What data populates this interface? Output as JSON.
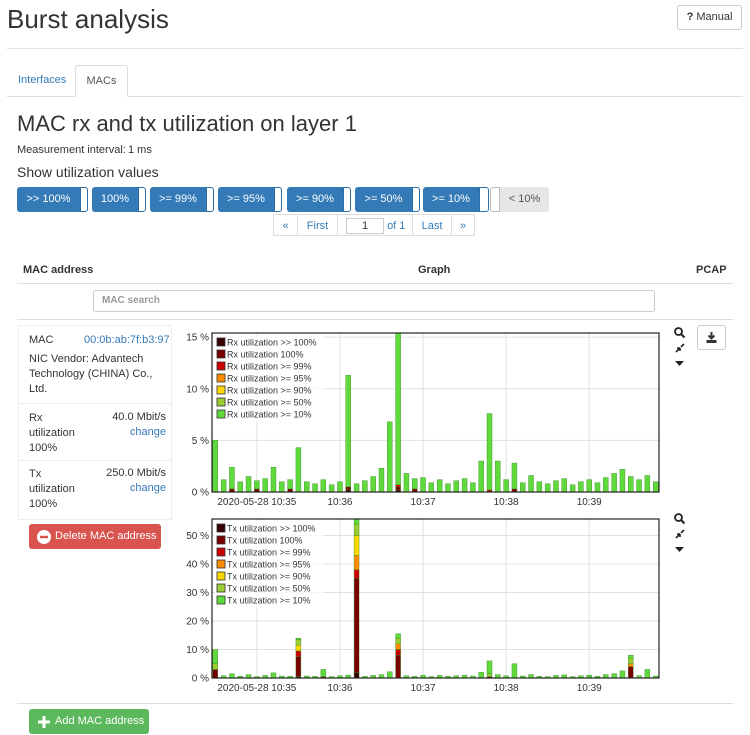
{
  "header": {
    "title": "Burst analysis",
    "manual_icon": "?",
    "manual": "Manual"
  },
  "tabs": [
    "Interfaces",
    "MACs"
  ],
  "section_title": "MAC rx and tx utilization on layer 1",
  "measurement": {
    "label": "Measurement interval:",
    "value": "1 ms"
  },
  "filters": {
    "title": "Show utilization values",
    "buttons": [
      ">> 100%",
      "100%",
      ">= 99%",
      ">= 95%",
      ">= 90%",
      ">= 50%",
      ">= 10%",
      "< 10%"
    ]
  },
  "pagination": [
    "«",
    "First",
    "1",
    "of 1",
    "Last",
    "»"
  ],
  "table": {
    "headers": [
      "MAC address",
      "Graph",
      "PCAP"
    ],
    "search_placeholder": "MAC search"
  },
  "mac": {
    "label": "MAC",
    "address": "00:0b:ab:7f:b3:97",
    "vendor": "NIC Vendor: Advantech Technology (CHINA) Co., Ltd.",
    "rx_label": "Rx utilization 100%",
    "rx_value": "40.0 Mbit/s",
    "rx_change": "change",
    "tx_label": "Tx utilization 100%",
    "tx_value": "250.0 Mbit/s",
    "tx_change": "change",
    "delete": "Delete MAC address"
  },
  "add_button": "Add MAC address",
  "chart_data": [
    {
      "type": "bar",
      "stacked": true,
      "grid": true,
      "legend": "upper left",
      "x": [
        -0.5,
        -0.4,
        -0.3,
        -0.2,
        -0.1,
        0,
        0.1,
        0.2,
        0.3,
        0.4,
        0.5,
        0.6,
        0.7,
        0.8,
        0.9,
        1,
        1.1,
        1.2,
        1.3,
        1.4,
        1.5,
        1.6,
        1.7,
        1.8,
        1.9,
        2,
        2.1,
        2.2,
        2.3,
        2.4,
        2.5,
        2.6,
        2.7,
        2.8,
        2.9,
        3,
        3.1,
        3.2,
        3.3,
        3.4,
        3.5,
        3.6,
        3.7,
        3.8,
        3.9,
        4,
        4.1,
        4.2,
        4.3,
        4.4,
        4.5,
        4.6,
        4.7,
        4.8
      ],
      "xlim": [
        -0.54,
        4.84
      ],
      "xticks": [
        {
          "value": 0,
          "label": "2020-05-28 10:35"
        },
        {
          "value": 1,
          "label": "10:36"
        },
        {
          "value": 2,
          "label": "10:37"
        },
        {
          "value": 3,
          "label": "10:38"
        },
        {
          "value": 4,
          "label": "10:39"
        }
      ],
      "ylim": [
        0,
        15.4
      ],
      "yticks": [
        {
          "value": 0,
          "label": "0 %"
        },
        {
          "value": 5,
          "label": "5 %"
        },
        {
          "value": 10,
          "label": "10 %"
        },
        {
          "value": 15,
          "label": "15 %"
        }
      ],
      "series": [
        {
          "name": "Rx utilization >> 100%",
          "color": "#3a0000",
          "values": [
            0,
            0,
            0,
            0,
            0,
            0,
            0,
            0,
            0,
            0,
            0,
            0,
            0,
            0,
            0,
            0,
            0.2,
            0,
            0,
            0,
            0,
            0,
            0.2,
            0,
            0,
            0,
            0,
            0,
            0,
            0,
            0,
            0,
            0,
            0,
            0,
            0,
            0,
            0,
            0,
            0,
            0,
            0,
            0,
            0,
            0,
            0,
            0,
            0,
            0,
            0,
            0,
            0,
            0,
            0
          ]
        },
        {
          "name": "Rx utilization 100%",
          "color": "#7a0000",
          "values": [
            0,
            0,
            0.3,
            0,
            0,
            0.3,
            0,
            0,
            0,
            0.3,
            0,
            0,
            0,
            0,
            0,
            0,
            0.3,
            0,
            0,
            0,
            0,
            0,
            0.3,
            0,
            0.3,
            0,
            0,
            0,
            0,
            0,
            0,
            0,
            0,
            0,
            0,
            0,
            0.3,
            0,
            0,
            0,
            0,
            0,
            0,
            0,
            0,
            0,
            0,
            0,
            0,
            0,
            0,
            0,
            0,
            0
          ]
        },
        {
          "name": "Rx utilization >= 99%",
          "color": "#cc0000",
          "values": [
            0,
            0,
            0,
            0,
            0,
            0,
            0,
            0,
            0,
            0,
            0,
            0,
            0,
            0,
            0,
            0,
            0,
            0,
            0,
            0,
            0,
            0,
            0.2,
            0,
            0,
            0,
            0,
            0,
            0,
            0,
            0,
            0,
            0,
            0.2,
            0,
            0,
            0,
            0,
            0,
            0,
            0,
            0,
            0,
            0,
            0,
            0,
            0,
            0,
            0,
            0,
            0,
            0,
            0,
            0
          ]
        },
        {
          "name": "Rx utilization >= 95%",
          "color": "#ff8c00",
          "values": [
            0,
            0,
            0,
            0,
            0,
            0,
            0,
            0,
            0,
            0,
            0,
            0,
            0,
            0,
            0,
            0,
            0,
            0,
            0,
            0,
            0,
            0,
            0,
            0,
            0,
            0,
            0,
            0,
            0,
            0,
            0,
            0,
            0,
            0,
            0,
            0,
            0,
            0,
            0,
            0,
            0,
            0,
            0,
            0,
            0,
            0,
            0,
            0,
            0,
            0,
            0,
            0,
            0,
            0
          ]
        },
        {
          "name": "Rx utilization >= 90%",
          "color": "#ffd700",
          "values": [
            0,
            0,
            0,
            0,
            0,
            0,
            0,
            0,
            0,
            0,
            0,
            0,
            0,
            0,
            0,
            0,
            0,
            0,
            0,
            0,
            0,
            0,
            0,
            0,
            0,
            0,
            0,
            0,
            0,
            0,
            0,
            0,
            0,
            0,
            0,
            0,
            0,
            0,
            0,
            0,
            0,
            0,
            0,
            0,
            0,
            0,
            0,
            0,
            0,
            0,
            0,
            0,
            0,
            0
          ]
        },
        {
          "name": "Rx utilization >= 50%",
          "color": "#9acd32",
          "values": [
            0,
            0,
            0,
            0,
            0,
            0,
            0,
            0,
            0,
            0,
            0,
            0,
            0,
            0,
            0,
            0,
            0,
            0,
            0,
            0,
            0,
            0,
            0,
            0,
            0,
            0,
            0,
            0,
            0,
            0,
            0,
            0,
            0,
            0,
            0,
            0,
            0,
            0,
            0,
            0,
            0,
            0,
            0,
            0,
            0,
            0,
            0,
            0,
            0,
            0,
            0,
            0,
            0,
            0
          ]
        },
        {
          "name": "Rx utilization >= 10%",
          "color": "#5fd93c",
          "values": [
            5,
            1.2,
            2.1,
            1,
            1.5,
            0.8,
            1.3,
            2.4,
            1,
            0.9,
            4.3,
            1,
            0.8,
            1.2,
            0.7,
            1,
            10.8,
            0.8,
            1.1,
            1.5,
            2.3,
            6.8,
            14.7,
            1.8,
            1,
            1.4,
            0.9,
            1.2,
            0.8,
            1.1,
            1.3,
            0.9,
            3,
            7.4,
            3,
            1.2,
            2.5,
            0.9,
            1.6,
            1,
            0.8,
            1.1,
            1.3,
            0.7,
            1,
            1.2,
            0.9,
            1.4,
            1.8,
            2.2,
            1.5,
            1.2,
            1.6,
            1
          ]
        }
      ]
    },
    {
      "type": "bar",
      "stacked": true,
      "grid": true,
      "legend": "upper left",
      "x": [
        -0.5,
        -0.4,
        -0.3,
        -0.2,
        -0.1,
        0,
        0.1,
        0.2,
        0.3,
        0.4,
        0.5,
        0.6,
        0.7,
        0.8,
        0.9,
        1,
        1.1,
        1.2,
        1.3,
        1.4,
        1.5,
        1.6,
        1.7,
        1.8,
        1.9,
        2,
        2.1,
        2.2,
        2.3,
        2.4,
        2.5,
        2.6,
        2.7,
        2.8,
        2.9,
        3,
        3.1,
        3.2,
        3.3,
        3.4,
        3.5,
        3.6,
        3.7,
        3.8,
        3.9,
        4,
        4.1,
        4.2,
        4.3,
        4.4,
        4.5,
        4.6,
        4.7,
        4.8
      ],
      "xlim": [
        -0.54,
        4.84
      ],
      "xticks": [
        {
          "value": 0,
          "label": "2020-05-28 10:35"
        },
        {
          "value": 1,
          "label": "10:36"
        },
        {
          "value": 2,
          "label": "10:37"
        },
        {
          "value": 3,
          "label": "10:38"
        },
        {
          "value": 4,
          "label": "10:39"
        }
      ],
      "ylim": [
        0,
        55.8
      ],
      "yticks": [
        {
          "value": 0,
          "label": "0 %"
        },
        {
          "value": 10,
          "label": "10 %"
        },
        {
          "value": 20,
          "label": "20 %"
        },
        {
          "value": 30,
          "label": "30 %"
        },
        {
          "value": 40,
          "label": "40 %"
        },
        {
          "value": 50,
          "label": "50 %"
        }
      ],
      "series": [
        {
          "name": "Tx utilization >> 100%",
          "color": "#3a0000",
          "values": [
            0,
            0,
            0,
            0,
            0,
            0,
            0,
            0,
            0,
            0,
            0.5,
            0,
            0,
            0,
            0,
            0,
            0,
            2,
            0,
            0,
            0,
            0,
            0,
            0,
            0,
            0,
            0,
            0,
            0,
            0,
            0,
            0,
            0,
            0,
            0,
            0,
            0,
            0,
            0,
            0,
            0,
            0,
            0,
            0,
            0,
            0,
            0,
            0,
            0,
            0,
            0,
            0,
            0,
            0
          ]
        },
        {
          "name": "Tx utilization 100%",
          "color": "#7a0000",
          "values": [
            3,
            0,
            0,
            0,
            0,
            0,
            0,
            0,
            0,
            0,
            7,
            0,
            0,
            0.5,
            0,
            0,
            0,
            33,
            0,
            0,
            0,
            0,
            8,
            0,
            0,
            0,
            0,
            0,
            0,
            0,
            0,
            0,
            0,
            0.5,
            0,
            0,
            0,
            0,
            0,
            0,
            0,
            0,
            0,
            0,
            0,
            0,
            0,
            0,
            0,
            0,
            4,
            0,
            0,
            0
          ]
        },
        {
          "name": "Tx utilization >= 99%",
          "color": "#cc0000",
          "values": [
            0,
            0,
            0,
            0,
            0,
            0,
            0,
            0,
            0,
            0,
            2,
            0,
            0,
            0,
            0,
            0,
            0,
            3,
            0,
            0,
            0,
            0,
            2,
            0,
            0,
            0,
            0,
            0,
            0,
            0,
            0,
            0,
            0,
            0,
            0,
            0,
            0,
            0,
            0,
            0,
            0,
            0,
            0,
            0,
            0,
            0,
            0,
            0,
            0,
            0,
            0,
            0,
            0,
            0
          ]
        },
        {
          "name": "Tx utilization >= 95%",
          "color": "#ff8c00",
          "values": [
            0,
            0,
            0,
            0,
            0,
            0,
            0,
            0,
            0,
            0,
            0,
            0,
            0,
            0,
            0,
            0,
            0,
            5,
            0,
            0,
            0,
            0,
            2,
            0,
            0,
            0,
            0,
            0,
            0,
            0,
            0,
            0,
            0,
            0,
            0,
            0,
            0,
            0,
            0,
            0,
            0,
            0,
            0,
            0,
            0,
            0,
            0,
            0,
            0,
            0,
            1,
            0,
            0,
            0
          ]
        },
        {
          "name": "Tx utilization >= 90%",
          "color": "#ffd700",
          "values": [
            0,
            0,
            0,
            0,
            0,
            0,
            0,
            0,
            0,
            0,
            2,
            0,
            0,
            0,
            0,
            0,
            0,
            7,
            0,
            0,
            0,
            0,
            0,
            0,
            0,
            0,
            0,
            0,
            0,
            0,
            0,
            0,
            0,
            0,
            0,
            0,
            0,
            0,
            0,
            0,
            0,
            0,
            0,
            0,
            0,
            0,
            0,
            0,
            0,
            0,
            0,
            0,
            0,
            0
          ]
        },
        {
          "name": "Tx utilization >= 50%",
          "color": "#9acd32",
          "values": [
            2,
            0,
            0,
            0,
            0,
            0,
            0,
            0,
            0,
            0,
            2,
            0,
            0,
            0,
            0,
            0,
            0,
            4,
            0,
            0,
            0,
            0,
            2,
            0,
            0,
            0,
            0,
            0,
            0,
            0,
            0,
            0,
            0,
            1,
            0,
            0,
            0,
            0,
            0,
            0,
            0,
            0,
            0,
            0,
            0,
            0,
            0,
            0,
            0,
            0,
            2,
            0,
            0,
            0
          ]
        },
        {
          "name": "Tx utilization >= 10%",
          "color": "#5fd93c",
          "values": [
            5,
            0.8,
            1.5,
            0.6,
            1.2,
            0.5,
            0.9,
            1.8,
            0.7,
            0.6,
            0.5,
            0.7,
            0.6,
            2.5,
            0.5,
            0.8,
            1,
            1.8,
            0.6,
            0.9,
            1.2,
            2.2,
            1.5,
            0.8,
            0.6,
            1,
            0.5,
            0.9,
            0.6,
            0.8,
            1,
            0.7,
            2,
            4.5,
            1.2,
            0.8,
            5,
            0.7,
            1.2,
            0.6,
            0.5,
            0.9,
            1.1,
            0.5,
            0.8,
            1,
            0.6,
            1.2,
            1.5,
            2.5,
            1,
            0.8,
            3,
            0.7
          ]
        }
      ]
    }
  ]
}
